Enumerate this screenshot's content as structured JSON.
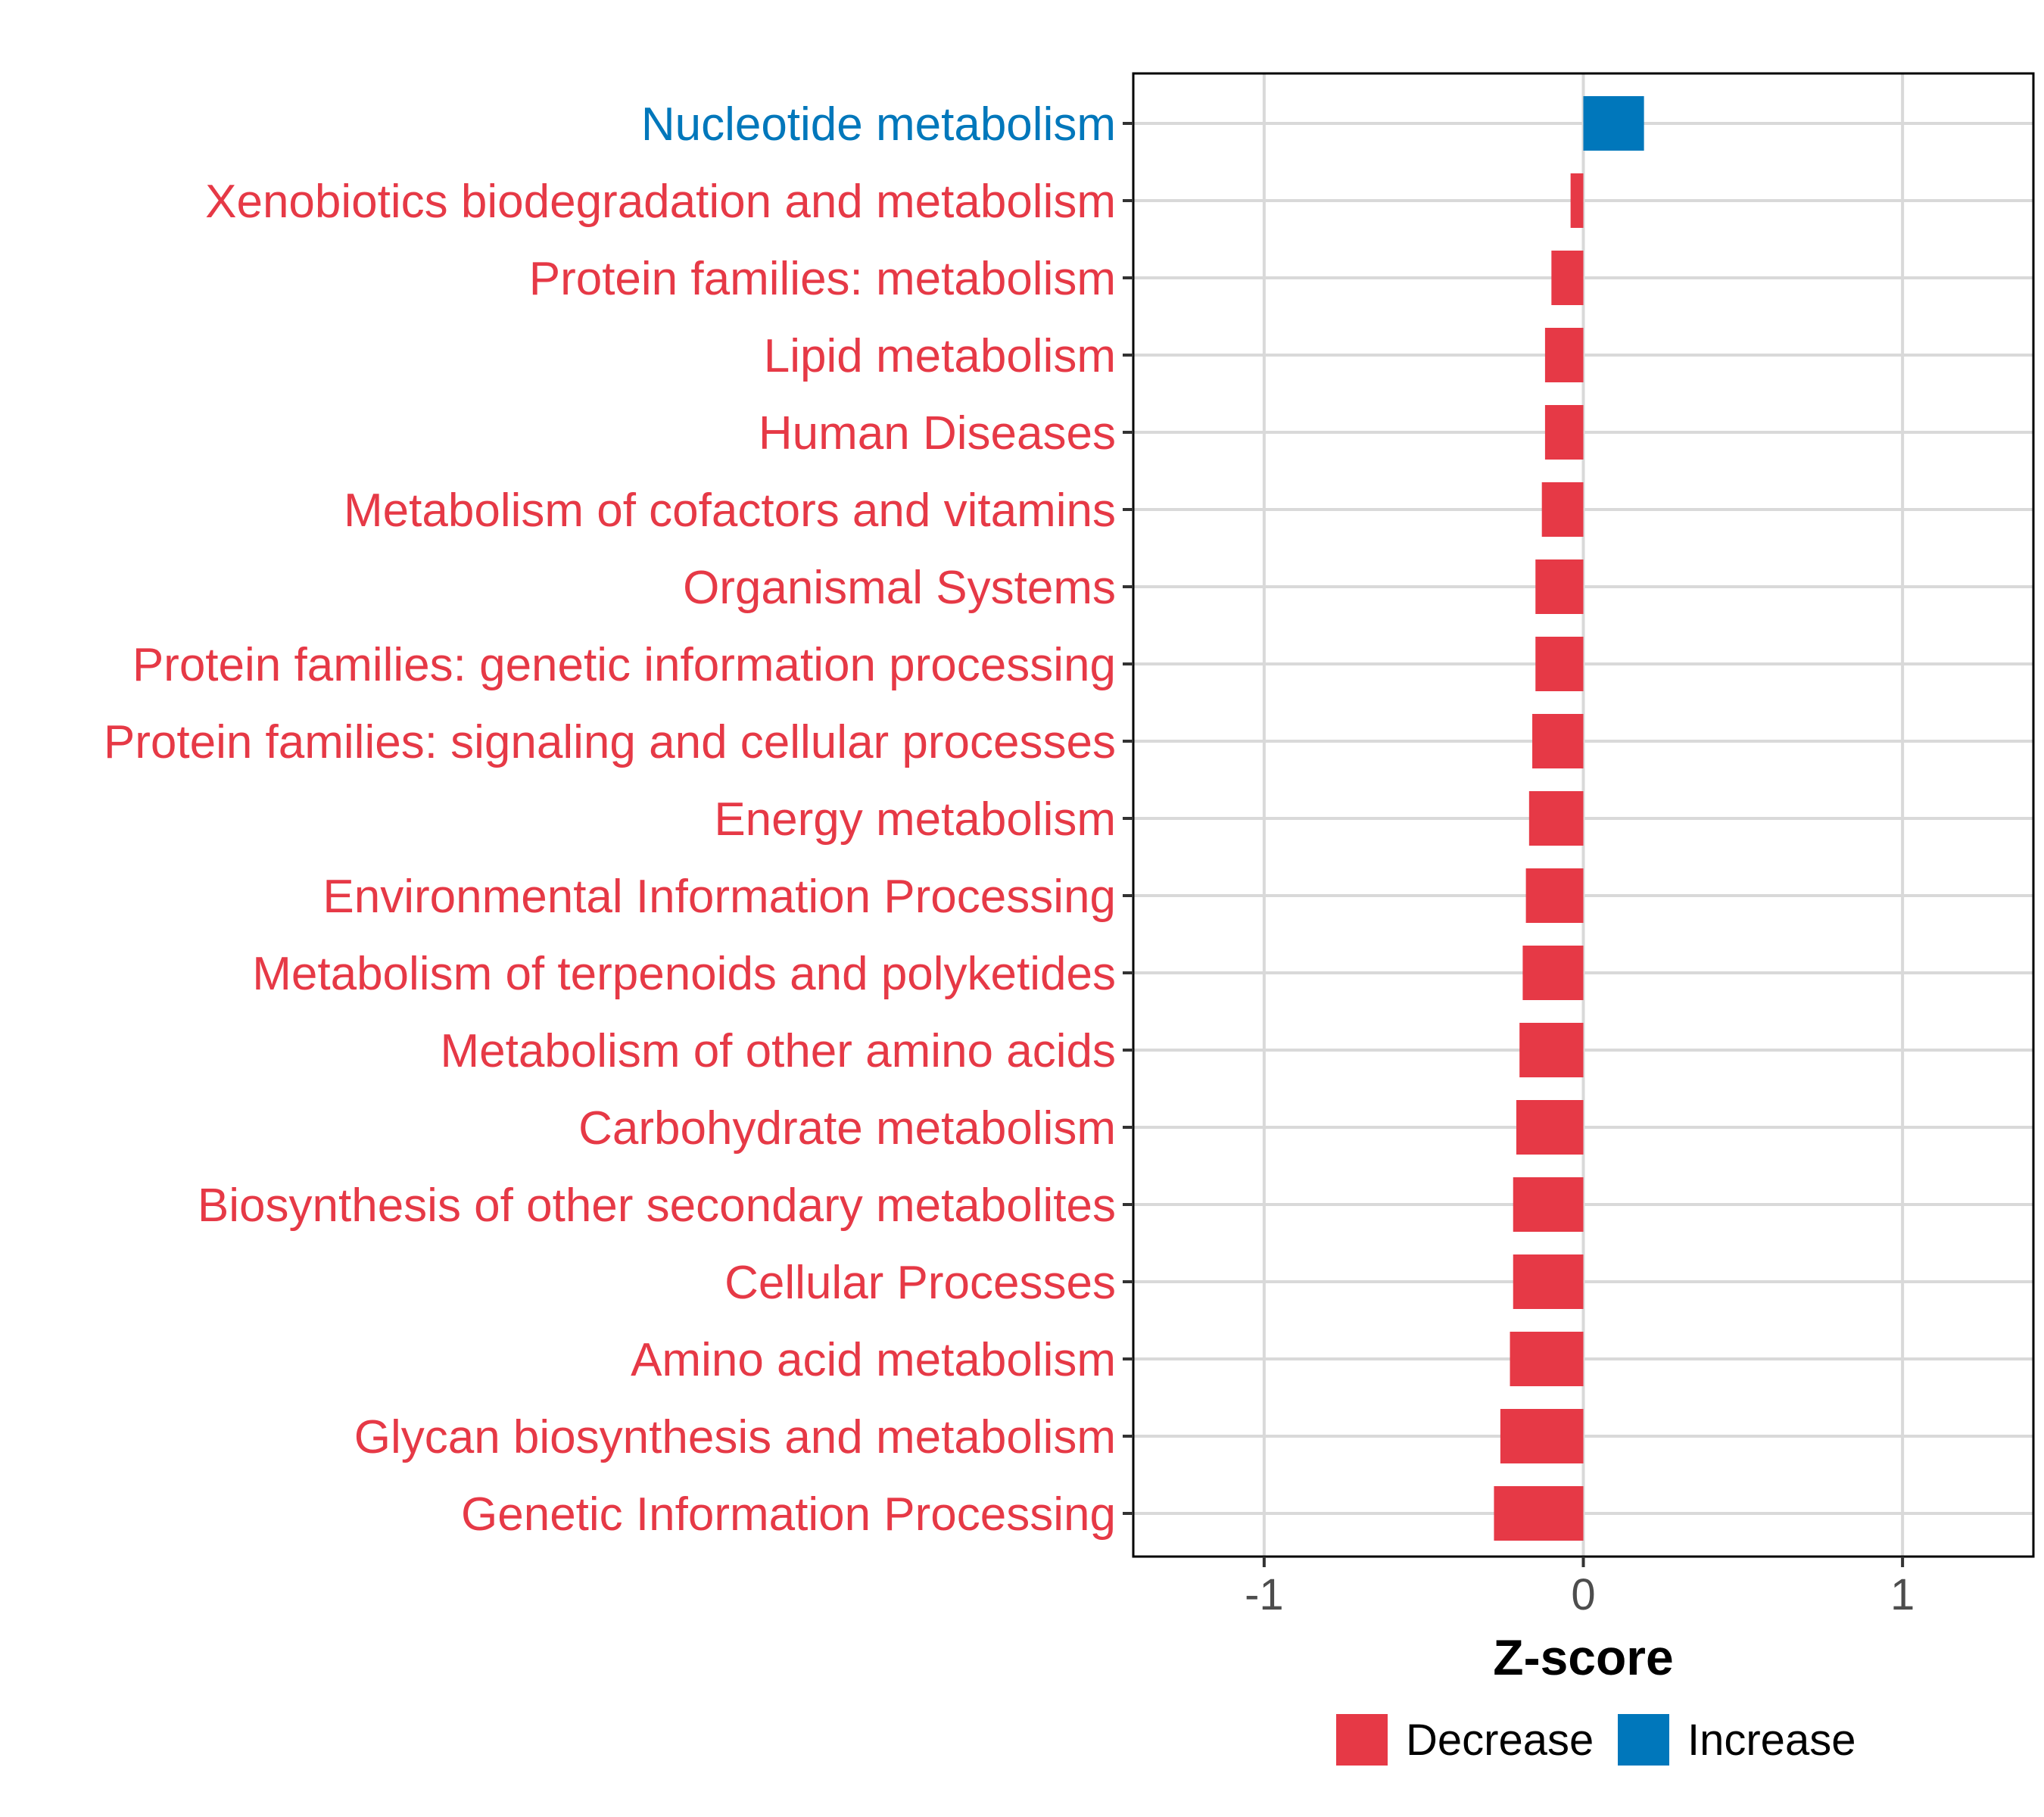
{
  "chart_data": {
    "type": "bar",
    "orientation": "horizontal",
    "title": "",
    "xlabel": "Z-score",
    "ylabel": "",
    "xlim": [
      -1.41,
      1.41
    ],
    "xticks": [
      {
        "value": -1,
        "label": "-1"
      },
      {
        "value": 0,
        "label": "0"
      },
      {
        "value": 1,
        "label": "1"
      }
    ],
    "grid": true,
    "legend_position": "bottom",
    "colors": {
      "Decrease": "#e63946",
      "Increase": "#0077bb"
    },
    "legend": [
      {
        "key": "Decrease",
        "label": "Decrease"
      },
      {
        "key": "Increase",
        "label": "Increase"
      }
    ],
    "categories": [
      {
        "label": "Nucleotide metabolism",
        "value": 0.19,
        "group": "Increase"
      },
      {
        "label": "Xenobiotics biodegradation and metabolism",
        "value": -0.04,
        "group": "Decrease"
      },
      {
        "label": "Protein families: metabolism",
        "value": -0.1,
        "group": "Decrease"
      },
      {
        "label": "Lipid metabolism",
        "value": -0.12,
        "group": "Decrease"
      },
      {
        "label": "Human Diseases",
        "value": -0.12,
        "group": "Decrease"
      },
      {
        "label": "Metabolism of cofactors and vitamins",
        "value": -0.13,
        "group": "Decrease"
      },
      {
        "label": "Organismal Systems",
        "value": -0.15,
        "group": "Decrease"
      },
      {
        "label": "Protein families: genetic information processing",
        "value": -0.15,
        "group": "Decrease"
      },
      {
        "label": "Protein families: signaling and cellular processes",
        "value": -0.16,
        "group": "Decrease"
      },
      {
        "label": "Energy metabolism",
        "value": -0.17,
        "group": "Decrease"
      },
      {
        "label": "Environmental Information Processing",
        "value": -0.18,
        "group": "Decrease"
      },
      {
        "label": "Metabolism of terpenoids and polyketides",
        "value": -0.19,
        "group": "Decrease"
      },
      {
        "label": "Metabolism of other amino acids",
        "value": -0.2,
        "group": "Decrease"
      },
      {
        "label": "Carbohydrate metabolism",
        "value": -0.21,
        "group": "Decrease"
      },
      {
        "label": "Biosynthesis of other secondary metabolites",
        "value": -0.22,
        "group": "Decrease"
      },
      {
        "label": "Cellular Processes",
        "value": -0.22,
        "group": "Decrease"
      },
      {
        "label": "Amino acid metabolism",
        "value": -0.23,
        "group": "Decrease"
      },
      {
        "label": "Glycan biosynthesis and metabolism",
        "value": -0.26,
        "group": "Decrease"
      },
      {
        "label": "Genetic Information Processing",
        "value": -0.28,
        "group": "Decrease"
      }
    ]
  }
}
